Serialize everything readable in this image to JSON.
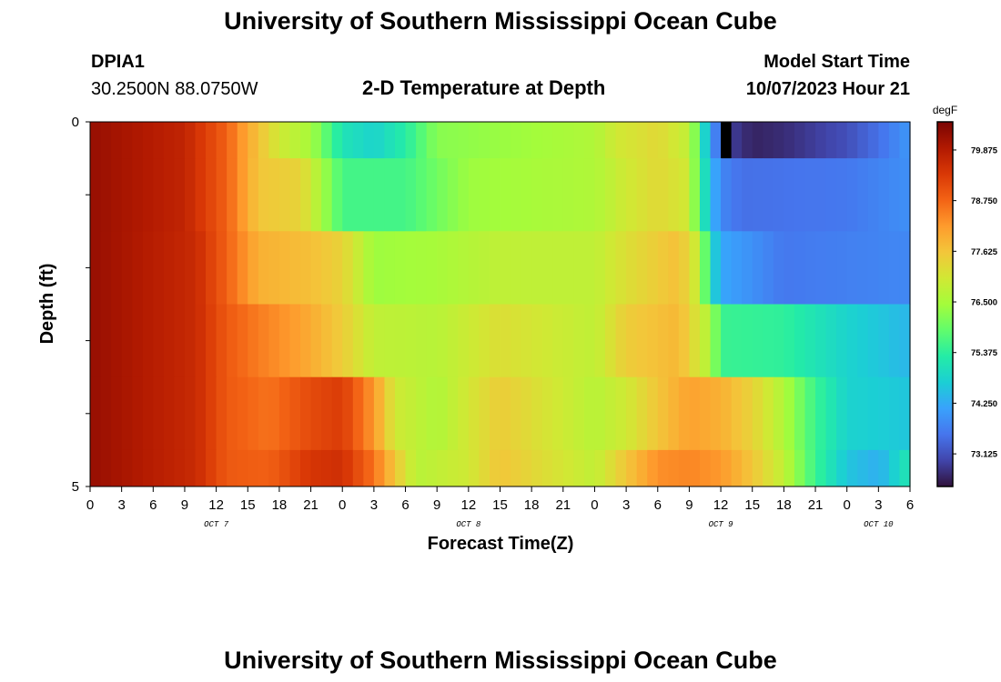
{
  "header": {
    "title": "University of Southern Mississippi Ocean Cube",
    "station_id": "DPIA1",
    "station_coords": "30.2500N  88.0750W",
    "subtitle": "2-D Temperature at Depth",
    "model_start_label": "Model Start Time",
    "model_start_value": "10/07/2023 Hour 21"
  },
  "footer": {
    "title": "University of Southern Mississippi Ocean Cube"
  },
  "chart_data": {
    "type": "heatmap",
    "title": "2-D Temperature at Depth",
    "xlabel": "Forecast Time(Z)",
    "ylabel": "Depth (ft)",
    "x_tick_labels": [
      "0",
      "3",
      "6",
      "9",
      "12",
      "15",
      "18",
      "21",
      "0",
      "3",
      "6",
      "9",
      "12",
      "15",
      "18",
      "21",
      "0",
      "3",
      "6",
      "9",
      "12",
      "15",
      "18",
      "21",
      "0",
      "3",
      "6"
    ],
    "x_tick_hours": [
      0,
      3,
      6,
      9,
      12,
      15,
      18,
      21,
      24,
      27,
      30,
      33,
      36,
      39,
      42,
      45,
      48,
      51,
      54,
      57,
      60,
      63,
      66,
      69,
      72,
      75,
      78
    ],
    "date_labels": [
      {
        "text": "OCT 7",
        "hour": 12
      },
      {
        "text": "OCT 8",
        "hour": 36
      },
      {
        "text": "OCT 9",
        "hour": 60
      },
      {
        "text": "OCT 10",
        "hour": 75
      }
    ],
    "xlim": [
      0,
      78
    ],
    "y_tick_labels": [
      "0",
      "5"
    ],
    "ylim": [
      0,
      5
    ],
    "colorbar": {
      "unit": "degF",
      "tick_labels": [
        "79.875",
        "78.750",
        "77.625",
        "76.500",
        "75.375",
        "74.250",
        "73.125"
      ],
      "tick_values": [
        79.875,
        78.75,
        77.625,
        76.5,
        75.375,
        74.25,
        73.125
      ],
      "range": [
        72.4,
        80.5
      ],
      "colormap": [
        "#30123b",
        "#4145ab",
        "#4675ed",
        "#39a2fc",
        "#1bcfd4",
        "#24eca6",
        "#61fc6c",
        "#a4fc3b",
        "#d1e834",
        "#f3c63a",
        "#fe9b2d",
        "#f36315",
        "#d93806",
        "#b11901",
        "#7a0403"
      ]
    },
    "depth_rows": [
      0,
      1,
      2,
      3,
      4,
      5
    ],
    "time_step_hours": 1,
    "row_keypoints": [
      {
        "depth": 0,
        "points": [
          [
            0,
            80.2
          ],
          [
            9,
            79.7
          ],
          [
            13,
            78.8
          ],
          [
            15,
            78.0
          ],
          [
            18,
            77.0
          ],
          [
            21,
            76.5
          ],
          [
            24,
            75.1
          ],
          [
            27,
            74.8
          ],
          [
            30,
            75.3
          ],
          [
            33,
            76.2
          ],
          [
            48,
            76.6
          ],
          [
            50,
            77.0
          ],
          [
            54,
            77.3
          ],
          [
            57,
            76.8
          ],
          [
            58,
            75.6
          ],
          [
            59,
            74.0
          ],
          [
            60,
            73.4
          ],
          [
            61,
            72.9
          ],
          [
            63,
            72.6
          ],
          [
            66,
            72.7
          ],
          [
            72,
            73.1
          ],
          [
            75,
            73.5
          ],
          [
            78,
            74.0
          ]
        ]
      },
      {
        "depth": 1,
        "points": [
          [
            0,
            80.2
          ],
          [
            9,
            79.7
          ],
          [
            13,
            78.8
          ],
          [
            16,
            77.6
          ],
          [
            20,
            77.4
          ],
          [
            24,
            75.6
          ],
          [
            30,
            75.6
          ],
          [
            36,
            76.4
          ],
          [
            48,
            76.6
          ],
          [
            51,
            77.0
          ],
          [
            54,
            77.3
          ],
          [
            57,
            77.0
          ],
          [
            58,
            75.5
          ],
          [
            59,
            74.5
          ],
          [
            60,
            73.8
          ],
          [
            62,
            73.5
          ],
          [
            72,
            73.6
          ],
          [
            78,
            73.9
          ]
        ]
      },
      {
        "depth": 2,
        "points": [
          [
            0,
            80.2
          ],
          [
            10,
            79.6
          ],
          [
            13,
            78.8
          ],
          [
            16,
            77.9
          ],
          [
            21,
            77.7
          ],
          [
            24,
            77.4
          ],
          [
            27,
            76.4
          ],
          [
            33,
            76.5
          ],
          [
            39,
            76.8
          ],
          [
            48,
            76.8
          ],
          [
            51,
            77.2
          ],
          [
            56,
            77.7
          ],
          [
            58,
            76.8
          ],
          [
            59,
            75.0
          ],
          [
            60,
            74.2
          ],
          [
            66,
            73.6
          ],
          [
            72,
            73.7
          ],
          [
            78,
            73.8
          ]
        ]
      },
      {
        "depth": 3,
        "points": [
          [
            0,
            80.2
          ],
          [
            10,
            79.6
          ],
          [
            13,
            78.9
          ],
          [
            16,
            78.5
          ],
          [
            20,
            78.1
          ],
          [
            24,
            77.5
          ],
          [
            27,
            76.8
          ],
          [
            33,
            76.7
          ],
          [
            39,
            77.2
          ],
          [
            48,
            76.8
          ],
          [
            51,
            77.5
          ],
          [
            56,
            77.8
          ],
          [
            59,
            76.6
          ],
          [
            60,
            75.5
          ],
          [
            66,
            75.4
          ],
          [
            72,
            74.8
          ],
          [
            78,
            74.4
          ]
        ]
      },
      {
        "depth": 4,
        "points": [
          [
            0,
            80.2
          ],
          [
            10,
            79.6
          ],
          [
            13,
            78.9
          ],
          [
            17,
            78.6
          ],
          [
            21,
            79.1
          ],
          [
            24,
            79.3
          ],
          [
            27,
            78.2
          ],
          [
            29,
            77.0
          ],
          [
            33,
            76.6
          ],
          [
            39,
            77.5
          ],
          [
            48,
            76.7
          ],
          [
            51,
            77.0
          ],
          [
            54,
            77.6
          ],
          [
            57,
            78.1
          ],
          [
            60,
            77.9
          ],
          [
            63,
            77.4
          ],
          [
            66,
            76.6
          ],
          [
            69,
            75.5
          ],
          [
            72,
            74.8
          ],
          [
            78,
            74.6
          ]
        ]
      },
      {
        "depth": 5,
        "points": [
          [
            0,
            80.2
          ],
          [
            10,
            79.6
          ],
          [
            13,
            78.9
          ],
          [
            17,
            78.8
          ],
          [
            21,
            79.4
          ],
          [
            24,
            79.5
          ],
          [
            27,
            78.6
          ],
          [
            29,
            77.6
          ],
          [
            31,
            76.7
          ],
          [
            36,
            77.0
          ],
          [
            39,
            77.6
          ],
          [
            48,
            76.8
          ],
          [
            51,
            77.6
          ],
          [
            54,
            78.3
          ],
          [
            57,
            78.4
          ],
          [
            60,
            78.2
          ],
          [
            63,
            77.6
          ],
          [
            66,
            76.8
          ],
          [
            69,
            75.5
          ],
          [
            72,
            74.6
          ],
          [
            75,
            74.3
          ],
          [
            78,
            75.2
          ]
        ]
      }
    ],
    "missing_cells": [
      {
        "hour": 60,
        "depth_row": 0
      }
    ]
  }
}
